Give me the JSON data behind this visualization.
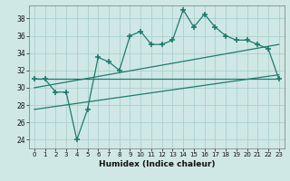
{
  "title": "",
  "xlabel": "Humidex (Indice chaleur)",
  "background_color": "#cfe8e5",
  "grid_color": "#aacfcc",
  "line_color": "#1e7b6e",
  "xlim": [
    -0.5,
    23.5
  ],
  "ylim": [
    23,
    39.5
  ],
  "yticks": [
    24,
    26,
    28,
    30,
    32,
    34,
    36,
    38
  ],
  "xticks": [
    0,
    1,
    2,
    3,
    4,
    5,
    6,
    7,
    8,
    9,
    10,
    11,
    12,
    13,
    14,
    15,
    16,
    17,
    18,
    19,
    20,
    21,
    22,
    23
  ],
  "main_line_x": [
    0,
    1,
    2,
    3,
    4,
    5,
    6,
    7,
    8,
    9,
    10,
    11,
    12,
    13,
    14,
    15,
    16,
    17,
    18,
    19,
    20,
    21,
    22,
    23
  ],
  "main_line_y": [
    31.0,
    31.0,
    29.5,
    29.5,
    24.0,
    27.5,
    33.5,
    33.0,
    32.0,
    36.0,
    36.5,
    35.0,
    35.0,
    35.5,
    39.0,
    37.0,
    38.5,
    37.0,
    36.0,
    35.5,
    35.5,
    35.0,
    34.5,
    31.0
  ],
  "trend1_x": [
    0,
    23
  ],
  "trend1_y": [
    31.0,
    31.0
  ],
  "trend2_x": [
    0,
    23
  ],
  "trend2_y": [
    30.0,
    35.0
  ],
  "trend3_x": [
    0,
    23
  ],
  "trend3_y": [
    27.5,
    31.5
  ]
}
